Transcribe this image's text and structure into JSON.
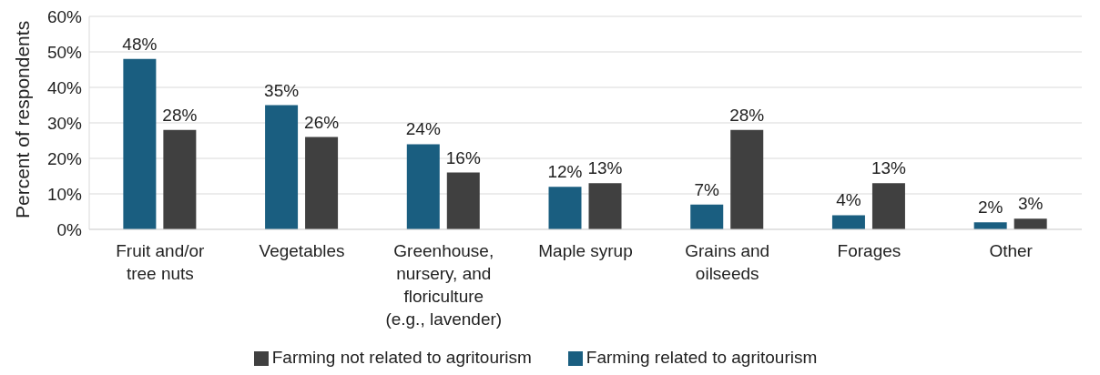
{
  "chart_data": {
    "type": "bar",
    "ylabel": "Percent of respondents",
    "categories": [
      "Fruit and/or tree nuts",
      "Vegetables",
      "Greenhouse, nursery, and floriculture (e.g., lavender)",
      "Maple syrup",
      "Grains and oilseeds",
      "Forages",
      "Other"
    ],
    "series": [
      {
        "name": "Farming related to agritourism",
        "color": "#1a5e80",
        "values": [
          48,
          35,
          24,
          12,
          7,
          4,
          2
        ],
        "value_labels": [
          "48%",
          "35%",
          "24%",
          "12%",
          "7%",
          "4%",
          "2%"
        ]
      },
      {
        "name": "Farming not related to agritourism",
        "color": "#404040",
        "values": [
          28,
          26,
          16,
          13,
          28,
          13,
          3
        ],
        "value_labels": [
          "28%",
          "26%",
          "16%",
          "13%",
          "28%",
          "13%",
          "3%"
        ]
      }
    ],
    "ylim": [
      0,
      60
    ],
    "yticks": [
      {
        "value": 0,
        "label": "0%"
      },
      {
        "value": 10,
        "label": "10%"
      },
      {
        "value": 20,
        "label": "20%"
      },
      {
        "value": 30,
        "label": "30%"
      },
      {
        "value": 40,
        "label": "40%"
      },
      {
        "value": 50,
        "label": "50%"
      },
      {
        "value": 60,
        "label": "60%"
      }
    ],
    "grid": "y",
    "legend": "bottom"
  }
}
